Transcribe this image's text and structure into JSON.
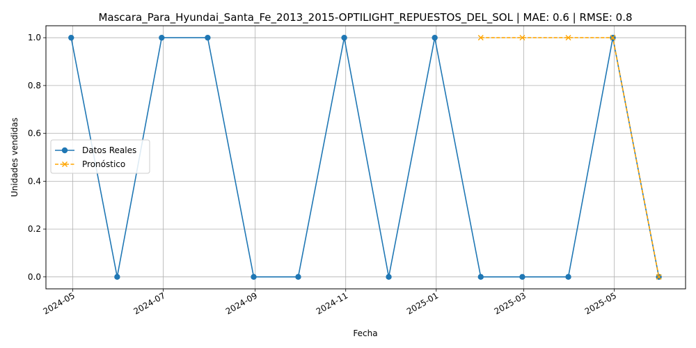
{
  "chart_data": {
    "type": "line",
    "title": "Mascara_Para_Hyundai_Santa_Fe_2013_2015-OPTILIGHT_REPUESTOS_DEL_SOL | MAE: 0.6 | RMSE: 0.8",
    "xlabel": "Fecha",
    "ylabel": "Unidades vendidas",
    "xlim": [
      "2024-04-13",
      "2025-06-18"
    ],
    "ylim": [
      -0.05,
      1.05
    ],
    "grid": true,
    "legend_position": "center-left",
    "x_ticks": [
      "2024-05",
      "2024-07",
      "2024-09",
      "2024-11",
      "2025-01",
      "2025-03",
      "2025-05"
    ],
    "y_ticks": [
      "0.0",
      "0.2",
      "0.4",
      "0.6",
      "0.8",
      "1.0"
    ],
    "series": [
      {
        "name": "Datos Reales",
        "color": "#1f77b4",
        "marker": "circle",
        "line_style": "solid",
        "x": [
          "2024-04-30",
          "2024-05-31",
          "2024-06-30",
          "2024-07-31",
          "2024-08-31",
          "2024-09-30",
          "2024-10-31",
          "2024-11-30",
          "2024-12-31",
          "2025-01-31",
          "2025-02-28",
          "2025-03-31",
          "2025-04-30",
          "2025-05-31"
        ],
        "values": [
          1,
          0,
          1,
          1,
          0,
          0,
          1,
          0,
          1,
          0,
          0,
          0,
          1,
          0
        ]
      },
      {
        "name": "Pronóstico",
        "color": "#ffa500",
        "marker": "x",
        "line_style": "dashed",
        "x": [
          "2025-01-31",
          "2025-02-28",
          "2025-03-31",
          "2025-04-30",
          "2025-05-31"
        ],
        "values": [
          1,
          1,
          1,
          1,
          0
        ]
      }
    ]
  }
}
